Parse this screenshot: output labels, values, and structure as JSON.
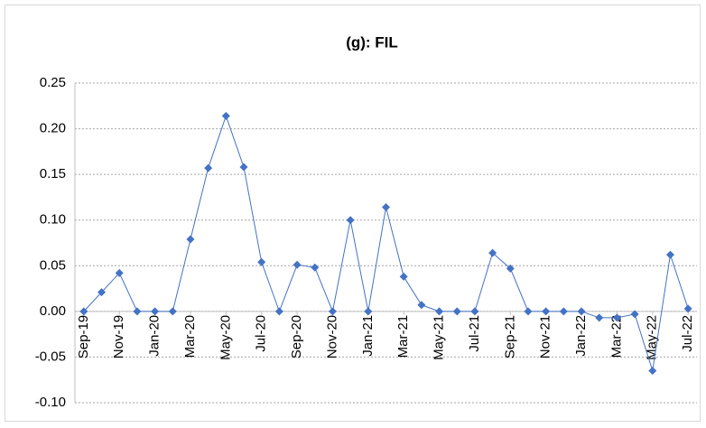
{
  "chart_data": {
    "type": "line",
    "title": "(g): FIL",
    "categories": [
      "Sep-19",
      null,
      "Nov-19",
      null,
      "Jan-20",
      null,
      "Mar-20",
      null,
      "May-20",
      null,
      "Jul-20",
      null,
      "Sep-20",
      null,
      "Nov-20",
      null,
      "Jan-21",
      null,
      "Mar-21",
      null,
      "May-21",
      null,
      "Jul-21",
      null,
      "Sep-21",
      null,
      "Nov-21",
      null,
      "Jan-22",
      null,
      "Mar-22",
      null,
      "May-22",
      null,
      "Jul-22"
    ],
    "series": [
      {
        "name": "FIL",
        "color": "#4472c4",
        "values": [
          0,
          0.021,
          0.042,
          0,
          0,
          0,
          0.079,
          0.157,
          0.214,
          0.158,
          0.054,
          0,
          0.051,
          0.048,
          0,
          0.1,
          0,
          0.114,
          0.038,
          0.007,
          0,
          0,
          0,
          0.064,
          0.047,
          0,
          0,
          0,
          0,
          -0.007,
          -0.007,
          -0.003,
          -0.065,
          0.062,
          0.003
        ]
      }
    ],
    "ylim": [
      -0.1,
      0.25
    ],
    "yticks": [
      {
        "value": -0.1,
        "label": "-0.10"
      },
      -0.05,
      {
        "value": 0,
        "label": "0.00"
      },
      0.05,
      {
        "value": 0.1,
        "label": "0.10"
      },
      0.15,
      {
        "value": 0.2,
        "label": "0.20"
      },
      0.25
    ],
    "grid": true
  }
}
